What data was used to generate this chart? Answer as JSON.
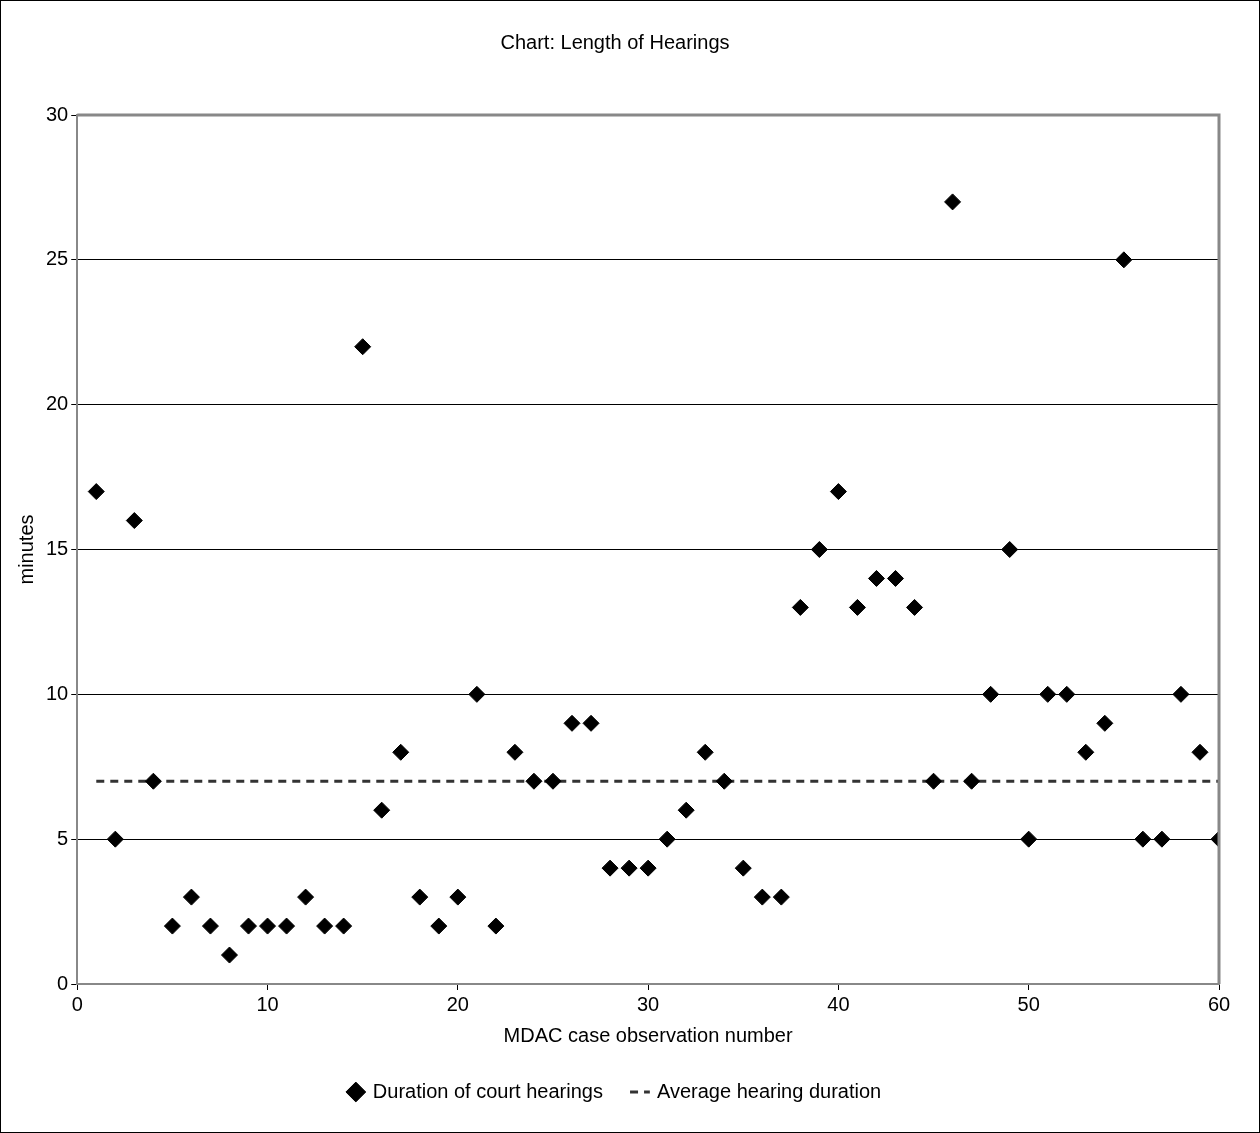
{
  "chart_data": {
    "type": "scatter",
    "title": "Chart: Length of Hearings",
    "xlabel": "MDAC case observation number",
    "ylabel": "minutes",
    "xlim": [
      0,
      60
    ],
    "xticks": [
      0,
      10,
      20,
      30,
      40,
      50,
      60
    ],
    "ylim": [
      0,
      30
    ],
    "yticks": [
      0,
      5,
      10,
      15,
      20,
      25,
      30
    ],
    "grid": "y",
    "legend": "bottom",
    "series": [
      {
        "name": "Duration of court hearings",
        "color": "#000000",
        "marker": "diamond",
        "x": [
          1,
          2,
          3,
          4,
          5,
          6,
          7,
          8,
          9,
          10,
          11,
          12,
          13,
          14,
          15,
          16,
          17,
          18,
          19,
          20,
          21,
          22,
          23,
          24,
          25,
          26,
          27,
          28,
          29,
          30,
          31,
          32,
          33,
          34,
          35,
          36,
          37,
          38,
          39,
          40,
          41,
          42,
          43,
          44,
          45,
          46,
          47,
          48,
          49,
          50,
          51,
          52,
          53,
          54,
          55,
          56,
          57,
          58,
          59,
          60
        ],
        "values": [
          17,
          5,
          16,
          7,
          2,
          3,
          2,
          1,
          2,
          2,
          2,
          3,
          2,
          2,
          22,
          6,
          8,
          3,
          2,
          3,
          10,
          2,
          8,
          7,
          7,
          9,
          9,
          4,
          4,
          4,
          5,
          6,
          8,
          7,
          4,
          3,
          3,
          13,
          15,
          17,
          13,
          14,
          14,
          13,
          7,
          27,
          7,
          10,
          15,
          5,
          10,
          10,
          8,
          9,
          25,
          5,
          5,
          10,
          8,
          5
        ]
      },
      {
        "name": "Average hearing duration",
        "type": "line",
        "color": "#333333",
        "marker": "none",
        "line_style": "dashed",
        "x": [
          1,
          60
        ],
        "values": [
          7,
          7
        ]
      }
    ]
  }
}
